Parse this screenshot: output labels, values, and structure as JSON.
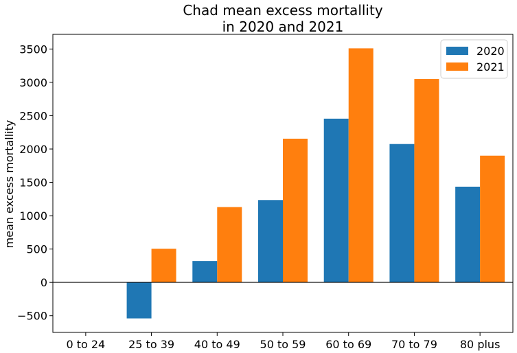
{
  "chart_data": {
    "type": "bar",
    "title_lines": [
      "Chad mean excess mortallity",
      "in 2020 and 2021"
    ],
    "xlabel": "",
    "ylabel": "mean excess mortallity",
    "categories": [
      "0 to 24",
      "25 to 39",
      "40 to 49",
      "50 to 59",
      "60 to 69",
      "70 to 79",
      "80 plus"
    ],
    "series": [
      {
        "name": "2020",
        "color": "#1f77b4",
        "values": [
          0,
          -540,
          320,
          1235,
          2455,
          2075,
          1435
        ]
      },
      {
        "name": "2021",
        "color": "#ff7f0e",
        "values": [
          0,
          505,
          1130,
          2155,
          3510,
          3050,
          1900
        ]
      }
    ],
    "ylim": [
      -750,
      3720
    ],
    "yticks": [
      -500,
      0,
      500,
      1000,
      1500,
      2000,
      2500,
      3000,
      3500
    ],
    "ytick_labels": [
      "−500",
      "0",
      "500",
      "1000",
      "1500",
      "2000",
      "2500",
      "3000",
      "3500"
    ],
    "zero_line": true,
    "grid": false,
    "legend_position": "top-right"
  }
}
